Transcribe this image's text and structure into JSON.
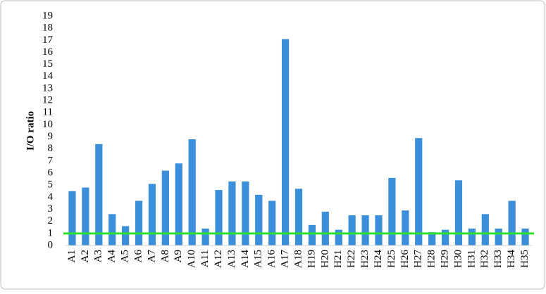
{
  "chart_data": {
    "type": "bar",
    "y_label": "I/O ratio",
    "categories": [
      "A1",
      "A2",
      "A3",
      "A4",
      "A5",
      "A6",
      "A7",
      "A8",
      "A9",
      "A10",
      "A11",
      "A12",
      "A13",
      "A14",
      "A15",
      "A16",
      "A17",
      "A18",
      "H19",
      "H20",
      "H21",
      "H22",
      "H23",
      "H24",
      "H25",
      "H26",
      "H27",
      "H28",
      "H29",
      "H30",
      "H31",
      "H32",
      "H33",
      "H34",
      "H35"
    ],
    "values": [
      4.5,
      4.8,
      8.4,
      2.6,
      1.6,
      3.7,
      5.1,
      6.2,
      6.8,
      8.8,
      1.4,
      4.6,
      5.3,
      5.3,
      4.2,
      3.7,
      17.1,
      4.7,
      1.7,
      2.8,
      1.3,
      2.5,
      2.5,
      2.5,
      5.6,
      2.9,
      8.9,
      1.1,
      1.3,
      5.4,
      1.4,
      2.6,
      1.4,
      3.7,
      1.4
    ],
    "color": "#3b8fda",
    "ylim": [
      0,
      19
    ],
    "yticks": [
      0,
      1,
      2,
      3,
      4,
      5,
      6,
      7,
      8,
      9,
      10,
      11,
      12,
      13,
      14,
      15,
      16,
      17,
      18,
      19
    ],
    "grid": false,
    "reference_line": {
      "value": 1,
      "color": "#2ee02e"
    }
  }
}
